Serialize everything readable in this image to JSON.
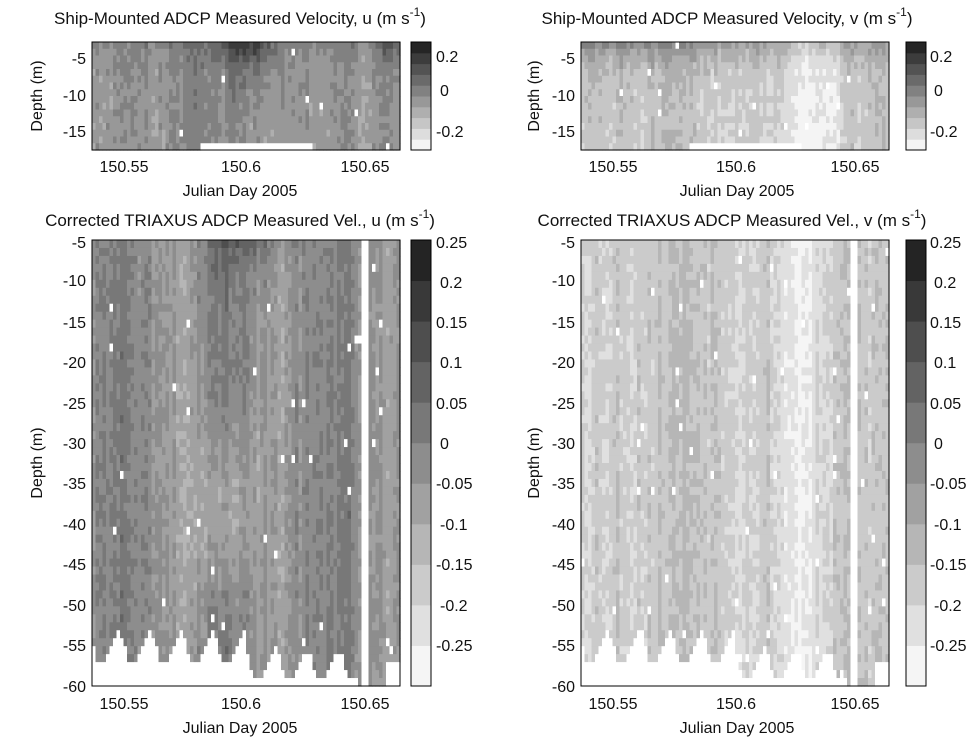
{
  "chart_data": [
    {
      "type": "heatmap",
      "title": "Ship-Mounted ADCP Measured Velocity, u (m s",
      "title_sup": "-1",
      "title_end": ")",
      "xlabel": "Julian Day 2005",
      "ylabel": "Depth (m)",
      "xlim": [
        150.537,
        150.665
      ],
      "ylim": [
        -18,
        -3
      ],
      "xticks": [
        "150.55",
        "150.6",
        "150.65"
      ],
      "xtick_values": [
        150.55,
        150.6,
        150.65
      ],
      "yticks": [
        "-5",
        "-10",
        "-15"
      ],
      "ytick_values": [
        -5,
        -10,
        -15
      ],
      "colorbar": {
        "range": [
          -0.3,
          0.25
        ],
        "ticks": [
          "0.2",
          "0",
          "-0.2"
        ],
        "tick_values": [
          0.2,
          0,
          -0.2
        ],
        "levels": 10
      },
      "colormap": [
        "#ffffff",
        "#1a1a1a"
      ],
      "field": "u_ship"
    },
    {
      "type": "heatmap",
      "title": "Ship-Mounted ADCP Measured Velocity, v (m s",
      "title_sup": "-1",
      "title_end": ")",
      "xlabel": "Julian Day 2005",
      "ylabel": "Depth (m)",
      "xlim": [
        150.537,
        150.665
      ],
      "ylim": [
        -18,
        -3
      ],
      "xticks": [
        "150.55",
        "150.6",
        "150.65"
      ],
      "xtick_values": [
        150.55,
        150.6,
        150.65
      ],
      "yticks": [
        "-5",
        "-10",
        "-15"
      ],
      "ytick_values": [
        -5,
        -10,
        -15
      ],
      "colorbar": {
        "range": [
          -0.3,
          0.25
        ],
        "ticks": [
          "0.2",
          "0",
          "-0.2"
        ],
        "tick_values": [
          0.2,
          0,
          -0.2
        ],
        "levels": 10
      },
      "colormap": [
        "#ffffff",
        "#1a1a1a"
      ],
      "field": "v_ship"
    },
    {
      "type": "heatmap",
      "title": "Corrected TRIAXUS ADCP Measured Vel., u (m s",
      "title_sup": "-1",
      "title_end": ")",
      "xlabel": "Julian Day 2005",
      "ylabel": "Depth (m)",
      "xlim": [
        150.537,
        150.665
      ],
      "ylim": [
        -60,
        -5
      ],
      "xticks": [
        "150.55",
        "150.6",
        "150.65"
      ],
      "xtick_values": [
        150.55,
        150.6,
        150.65
      ],
      "yticks": [
        "-5",
        "-10",
        "-15",
        "-20",
        "-25",
        "-30",
        "-35",
        "-40",
        "-45",
        "-50",
        "-55",
        "-60"
      ],
      "ytick_values": [
        -5,
        -10,
        -15,
        -20,
        -25,
        -30,
        -35,
        -40,
        -45,
        -50,
        -55,
        -60
      ],
      "colorbar": {
        "range": [
          -0.3,
          0.25
        ],
        "ticks": [
          "0.25",
          "0.2",
          "0.15",
          "0.1",
          "0.05",
          "0",
          "-0.05",
          "-0.1",
          "-0.15",
          "-0.2",
          "-0.25"
        ],
        "tick_values": [
          0.25,
          0.2,
          0.15,
          0.1,
          0.05,
          0,
          -0.05,
          -0.1,
          -0.15,
          -0.2,
          -0.25
        ],
        "levels": 11
      },
      "colormap": [
        "#ffffff",
        "#1a1a1a"
      ],
      "field": "u_triaxus"
    },
    {
      "type": "heatmap",
      "title": "Corrected TRIAXUS ADCP Measured Vel., v (m s",
      "title_sup": "-1",
      "title_end": ")",
      "xlabel": "Julian Day 2005",
      "ylabel": "Depth (m)",
      "xlim": [
        150.537,
        150.665
      ],
      "ylim": [
        -60,
        -5
      ],
      "xticks": [
        "150.55",
        "150.6",
        "150.65"
      ],
      "xtick_values": [
        150.55,
        150.6,
        150.65
      ],
      "yticks": [
        "-5",
        "-10",
        "-15",
        "-20",
        "-25",
        "-30",
        "-35",
        "-40",
        "-45",
        "-50",
        "-55",
        "-60"
      ],
      "ytick_values": [
        -5,
        -10,
        -15,
        -20,
        -25,
        -30,
        -35,
        -40,
        -45,
        -50,
        -55,
        -60
      ],
      "colorbar": {
        "range": [
          -0.3,
          0.25
        ],
        "ticks": [
          "0.25",
          "0.2",
          "0.15",
          "0.1",
          "0.05",
          "0",
          "-0.05",
          "-0.1",
          "-0.15",
          "-0.2",
          "-0.25"
        ],
        "tick_values": [
          0.25,
          0.2,
          0.15,
          0.1,
          0.05,
          0,
          -0.05,
          -0.1,
          -0.15,
          -0.2,
          -0.25
        ],
        "levels": 11
      },
      "colormap": [
        "#ffffff",
        "#1a1a1a"
      ],
      "field": "v_triaxus"
    }
  ]
}
